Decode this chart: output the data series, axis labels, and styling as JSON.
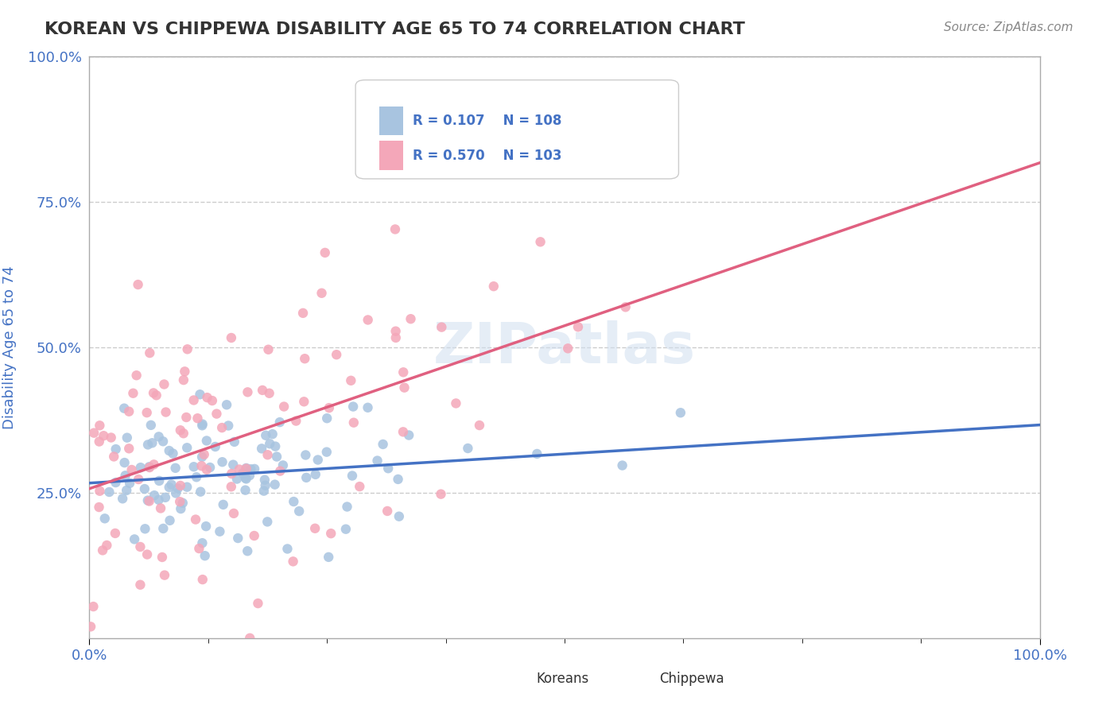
{
  "title": "KOREAN VS CHIPPEWA DISABILITY AGE 65 TO 74 CORRELATION CHART",
  "source_text": "Source: ZipAtlas.com",
  "xlabel": "",
  "ylabel": "Disability Age 65 to 74",
  "x_min": 0.0,
  "x_max": 1.0,
  "y_min": 0.0,
  "y_max": 1.0,
  "x_tick_labels": [
    "0.0%",
    "100.0%"
  ],
  "y_tick_labels": [
    "25.0%",
    "50.0%",
    "75.0%",
    "100.0%"
  ],
  "korean_R": 0.107,
  "korean_N": 108,
  "chippewa_R": 0.57,
  "chippewa_N": 103,
  "korean_color": "#a8c4e0",
  "chippewa_color": "#f4a7b9",
  "korean_line_color": "#4472c4",
  "chippewa_line_color": "#e06080",
  "legend_R_color": "#4472c4",
  "watermark": "ZIPatlas",
  "background_color": "#ffffff",
  "grid_color": "#cccccc",
  "title_color": "#333333",
  "axis_label_color": "#4472c4",
  "tick_label_color": "#4472c4"
}
